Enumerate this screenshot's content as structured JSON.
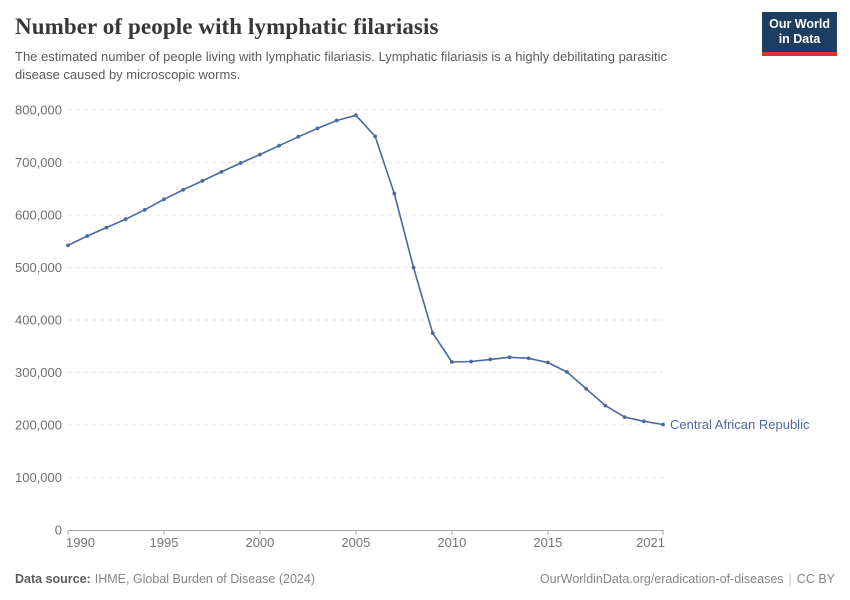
{
  "header": {
    "title": "Number of people with lymphatic filariasis",
    "subtitle": "The estimated number of people living with lymphatic filariasis. Lymphatic filariasis is a highly debilitating parasitic disease caused by microscopic worms.",
    "logo": {
      "line1": "Our World",
      "line2": "in Data"
    }
  },
  "chart_data": {
    "type": "line",
    "title": "Number of people with lymphatic filariasis",
    "entity": "Central African Republic",
    "x": [
      1990,
      1991,
      1992,
      1993,
      1994,
      1995,
      1996,
      1997,
      1998,
      1999,
      2000,
      2001,
      2002,
      2003,
      2004,
      2005,
      2006,
      2007,
      2008,
      2009,
      2010,
      2011,
      2012,
      2013,
      2014,
      2015,
      2016,
      2017,
      2018,
      2019,
      2020,
      2021
    ],
    "values": [
      542000,
      560000,
      576000,
      592000,
      610000,
      630000,
      648000,
      665000,
      682000,
      699000,
      715000,
      732000,
      749000,
      765000,
      780000,
      790000,
      750000,
      641000,
      500000,
      375000,
      320000,
      321000,
      325000,
      329000,
      327000,
      319000,
      301000,
      269000,
      237000,
      215000,
      207000,
      201000
    ],
    "xlim": [
      1990,
      2021
    ],
    "ylim": [
      0,
      800000
    ],
    "xticks": [
      1990,
      1995,
      2000,
      2005,
      2010,
      2015,
      2021
    ],
    "yticks": {
      "values": [
        0,
        100000,
        200000,
        300000,
        400000,
        500000,
        600000,
        700000,
        800000
      ],
      "labels": [
        "0",
        "100,000",
        "200,000",
        "300,000",
        "400,000",
        "500,000",
        "600,000",
        "700,000",
        "800,000"
      ]
    },
    "grid": "horizontal-dashed",
    "legend_position": "end-of-line-label",
    "line_color": "#4a69a0",
    "colors": {
      "logo_navy": "#1d3d63",
      "logo_red": "#dc352d",
      "grid": "#e3e3e3",
      "axis": "#a6a6a6"
    }
  },
  "footer": {
    "source_label": "Data source:",
    "source_text": "IHME, Global Burden of Disease (2024)",
    "url": "OurWorldinData.org/eradication-of-diseases",
    "separator": "|",
    "license": "CC BY"
  }
}
